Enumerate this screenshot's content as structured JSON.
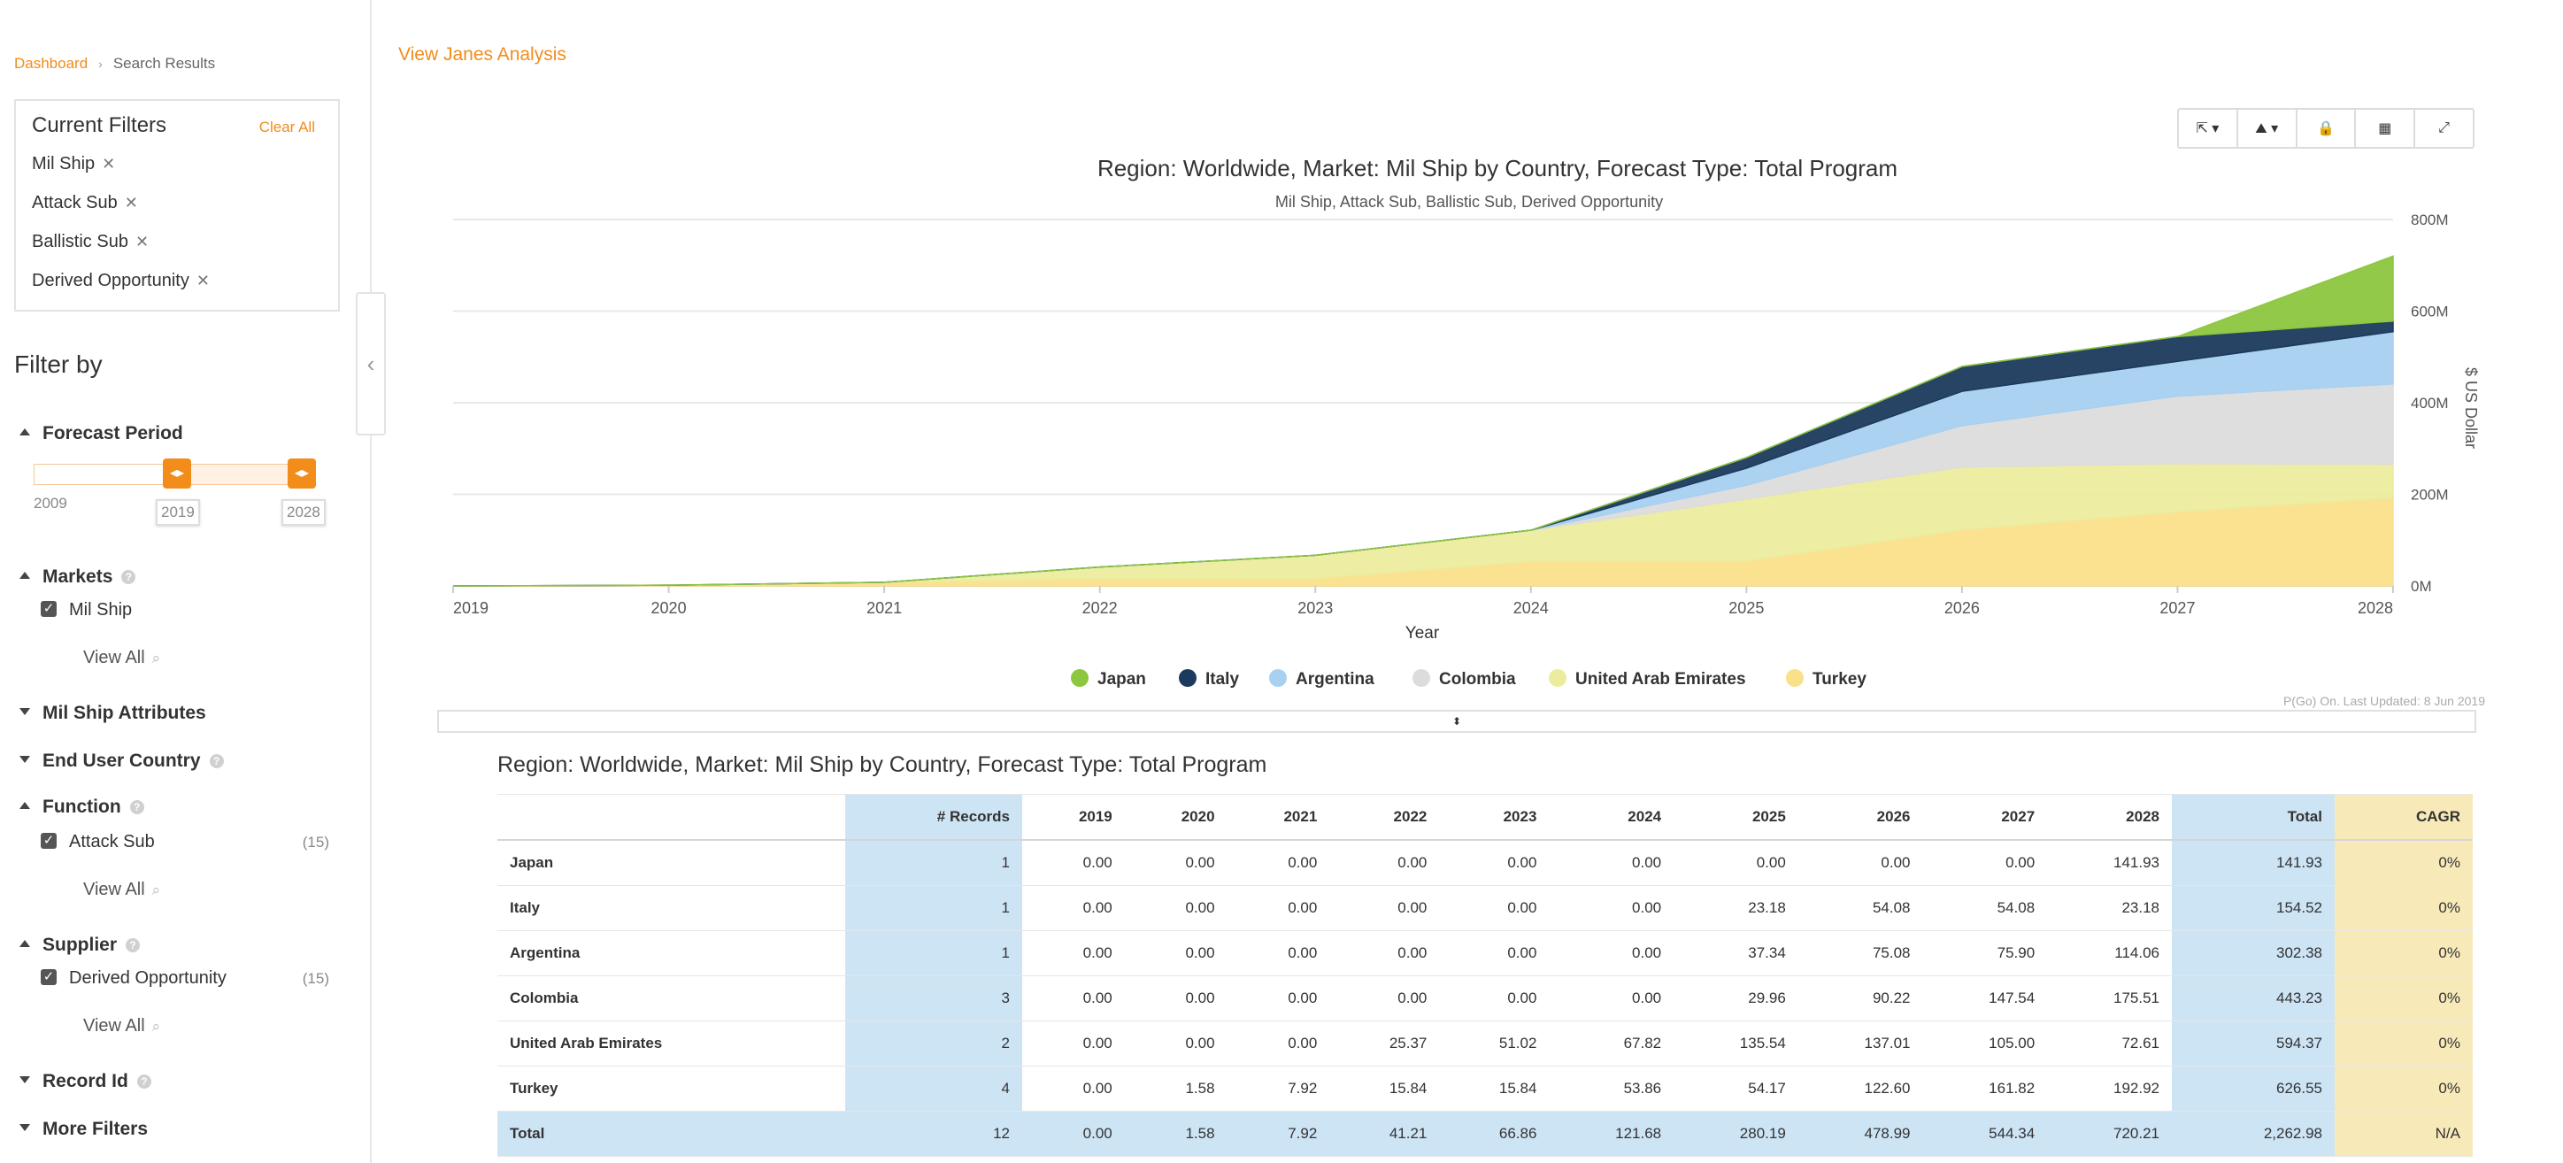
{
  "breadcrumb": {
    "link": "Dashboard",
    "current": "Search Results"
  },
  "current_filters": {
    "title": "Current Filters",
    "clear_all": "Clear All",
    "chips": [
      "Mil Ship",
      "Attack Sub",
      "Ballistic Sub",
      "Derived Opportunity"
    ]
  },
  "filter_by": {
    "title": "Filter by",
    "forecast_period": {
      "label": "Forecast Period",
      "min_label": "2009",
      "from": "2019",
      "to": "2028"
    },
    "markets": {
      "label": "Markets",
      "option": "Mil Ship",
      "view_all": "View All"
    },
    "mil_ship_attributes": "Mil Ship Attributes",
    "end_user_country": "End User Country",
    "function": {
      "label": "Function",
      "option": "Attack Sub",
      "count": "(15)",
      "view_all": "View All"
    },
    "supplier": {
      "label": "Supplier",
      "option": "Derived Opportunity",
      "count": "(15)",
      "view_all": "View All"
    },
    "record_id": "Record Id",
    "more_filters": "More Filters"
  },
  "view_analysis": "View Janes Analysis",
  "colors": {
    "japan": "#8dc63f",
    "italy": "#1b3a5c",
    "argentina": "#a8d0f0",
    "colombia": "#dcdcdc",
    "uae": "#ecec9e",
    "turkey": "#fbe08a",
    "accent": "#f28c1b"
  },
  "chart_data": {
    "type": "area",
    "stacked": true,
    "title": "Region: Worldwide, Market: Mil Ship by Country, Forecast Type: Total Program",
    "subtitle": "Mil Ship, Attack Sub, Ballistic Sub, Derived Opportunity",
    "xlabel": "Year",
    "ylabel": "$ US Dollar",
    "x": [
      "2019",
      "2020",
      "2021",
      "2022",
      "2023",
      "2024",
      "2025",
      "2026",
      "2027",
      "2028"
    ],
    "ylim": [
      0,
      800
    ],
    "y_ticks": [
      "0M",
      "200M",
      "400M",
      "600M",
      "800M"
    ],
    "legend_position": "bottom",
    "series": [
      {
        "name": "Turkey",
        "color": "#fbe08a",
        "values": [
          0.0,
          1.58,
          7.92,
          15.84,
          15.84,
          53.86,
          54.17,
          122.6,
          161.82,
          192.92
        ]
      },
      {
        "name": "United Arab Emirates",
        "color": "#ecec9e",
        "values": [
          0.0,
          0.0,
          0.0,
          25.37,
          51.02,
          67.82,
          135.54,
          137.01,
          105.0,
          72.61
        ]
      },
      {
        "name": "Colombia",
        "color": "#dcdcdc",
        "values": [
          0.0,
          0.0,
          0.0,
          0.0,
          0.0,
          0.0,
          29.96,
          90.22,
          147.54,
          175.51
        ]
      },
      {
        "name": "Argentina",
        "color": "#a8d0f0",
        "values": [
          0.0,
          0.0,
          0.0,
          0.0,
          0.0,
          0.0,
          37.34,
          75.08,
          75.9,
          114.06
        ]
      },
      {
        "name": "Italy",
        "color": "#1b3a5c",
        "values": [
          0.0,
          0.0,
          0.0,
          0.0,
          0.0,
          0.0,
          23.18,
          54.08,
          54.08,
          23.18
        ]
      },
      {
        "name": "Japan",
        "color": "#8dc63f",
        "values": [
          0.0,
          0.0,
          0.0,
          0.0,
          0.0,
          0.0,
          0.0,
          0.0,
          0.0,
          141.93
        ]
      }
    ],
    "legend": [
      "Japan",
      "Italy",
      "Argentina",
      "Colombia",
      "United Arab Emirates",
      "Turkey"
    ]
  },
  "updated_note": "P(Go) On. Last Updated: 8 Jun 2019",
  "table": {
    "title": "Region: Worldwide, Market: Mil Ship by Country, Forecast Type: Total Program",
    "headers": [
      "",
      "# Records",
      "2019",
      "2020",
      "2021",
      "2022",
      "2023",
      "2024",
      "2025",
      "2026",
      "2027",
      "2028",
      "Total",
      "CAGR"
    ],
    "rows": [
      [
        "Japan",
        "1",
        "0.00",
        "0.00",
        "0.00",
        "0.00",
        "0.00",
        "0.00",
        "0.00",
        "0.00",
        "0.00",
        "141.93",
        "141.93",
        "0%"
      ],
      [
        "Italy",
        "1",
        "0.00",
        "0.00",
        "0.00",
        "0.00",
        "0.00",
        "0.00",
        "23.18",
        "54.08",
        "54.08",
        "23.18",
        "154.52",
        "0%"
      ],
      [
        "Argentina",
        "1",
        "0.00",
        "0.00",
        "0.00",
        "0.00",
        "0.00",
        "0.00",
        "37.34",
        "75.08",
        "75.90",
        "114.06",
        "302.38",
        "0%"
      ],
      [
        "Colombia",
        "3",
        "0.00",
        "0.00",
        "0.00",
        "0.00",
        "0.00",
        "0.00",
        "29.96",
        "90.22",
        "147.54",
        "175.51",
        "443.23",
        "0%"
      ],
      [
        "United Arab Emirates",
        "2",
        "0.00",
        "0.00",
        "0.00",
        "25.37",
        "51.02",
        "67.82",
        "135.54",
        "137.01",
        "105.00",
        "72.61",
        "594.37",
        "0%"
      ],
      [
        "Turkey",
        "4",
        "0.00",
        "1.58",
        "7.92",
        "15.84",
        "15.84",
        "53.86",
        "54.17",
        "122.60",
        "161.82",
        "192.92",
        "626.55",
        "0%"
      ]
    ],
    "total_row": [
      "Total",
      "12",
      "0.00",
      "1.58",
      "7.92",
      "41.21",
      "66.86",
      "121.68",
      "280.19",
      "478.99",
      "544.34",
      "720.21",
      "2,262.98",
      "N/A"
    ]
  }
}
